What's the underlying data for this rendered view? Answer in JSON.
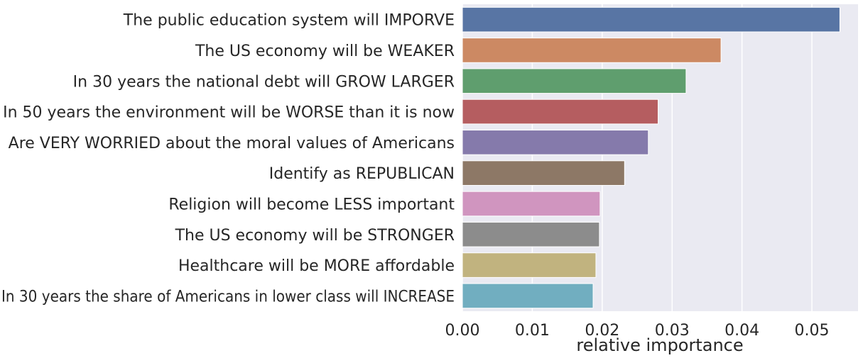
{
  "chart_data": {
    "type": "bar",
    "orientation": "horizontal",
    "categories": [
      "The public education system will IMPORVE",
      "The US economy will be WEAKER",
      "In 30 years the national debt will GROW LARGER",
      "In 50 years the environment will be WORSE than it is now",
      "Are VERY WORRIED about the moral values of Americans",
      "Identify as REPUBLICAN",
      "Religion will become LESS important",
      "The US economy will be STRONGER",
      "Healthcare will be MORE affordable",
      "In 30 years the share of Americans in lower class will INCREASE"
    ],
    "values": [
      0.054,
      0.037,
      0.032,
      0.028,
      0.0266,
      0.0232,
      0.0197,
      0.0196,
      0.0191,
      0.0187
    ],
    "colors": [
      "#5875a4",
      "#cc8963",
      "#5f9e6e",
      "#b55d60",
      "#857aab",
      "#8d7866",
      "#d095bf",
      "#8c8c8c",
      "#c1b37f",
      "#71aec0"
    ],
    "xlabel": "relative importance",
    "ylabel": "",
    "xlim": [
      0,
      0.0566
    ],
    "xticks": [
      "0.00",
      "0.01",
      "0.02",
      "0.03",
      "0.04",
      "0.05"
    ],
    "grid": true
  }
}
